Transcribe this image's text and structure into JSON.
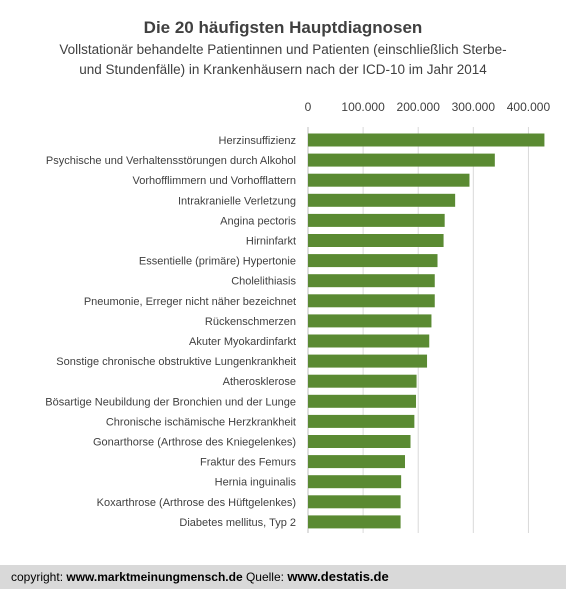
{
  "chart_data": {
    "type": "bar",
    "orientation": "horizontal",
    "title": "Die 20 häufigsten Hauptdiagnosen",
    "subtitle_line1": "Vollstationär behandelte Patientinnen und Patienten (einschließlich Sterbe-",
    "subtitle_line2": "und Stundenfälle) in Krankenhäusern  nach der ICD-10 im Jahr 2014",
    "categories": [
      "Herzinsuffizienz",
      "Psychische und Verhaltensstörungen durch Alkohol",
      "Vorhofflimmern und Vorhofflattern",
      "Intrakranielle Verletzung",
      "Angina pectoris",
      "Hirninfarkt",
      "Essentielle (primäre) Hypertonie",
      "Cholelithiasis",
      "Pneumonie, Erreger nicht näher bezeichnet",
      "Rückenschmerzen",
      "Akuter Myokardinfarkt",
      "Sonstige chronische obstruktive Lungenkrankheit",
      "Atherosklerose",
      "Bösartige Neubildung der Bronchien und der Lunge",
      "Chronische ischämische Herzkrankheit",
      "Gonarthorse (Arthrose des Kniegelenkes)",
      "Fraktur des Femurs",
      "Hernia inguinalis",
      "Koxarthrose (Arthrose des Hüftgelenkes)",
      "Diabetes mellitus, Typ 2"
    ],
    "values": [
      429000,
      339000,
      293000,
      267000,
      248000,
      246000,
      235000,
      230000,
      230000,
      224000,
      220000,
      216000,
      197000,
      196000,
      193000,
      186000,
      176000,
      169000,
      168000,
      168000
    ],
    "xlim": [
      0,
      450000
    ],
    "x_ticks": [
      0,
      100000,
      200000,
      300000,
      400000
    ],
    "x_tick_labels": [
      "0",
      "100.000",
      "200.000",
      "300.000",
      "400.000"
    ],
    "grid": true,
    "colors": {
      "bar": "#5a8a32",
      "grid": "#d9d9d9",
      "axis": "#bfbfbf"
    }
  },
  "footer": {
    "copyright_label": "copyright: ",
    "copyright_site": "www.marktmeinungmensch.de",
    "source_label": " Quelle: ",
    "source_site": "www.destatis.de"
  }
}
